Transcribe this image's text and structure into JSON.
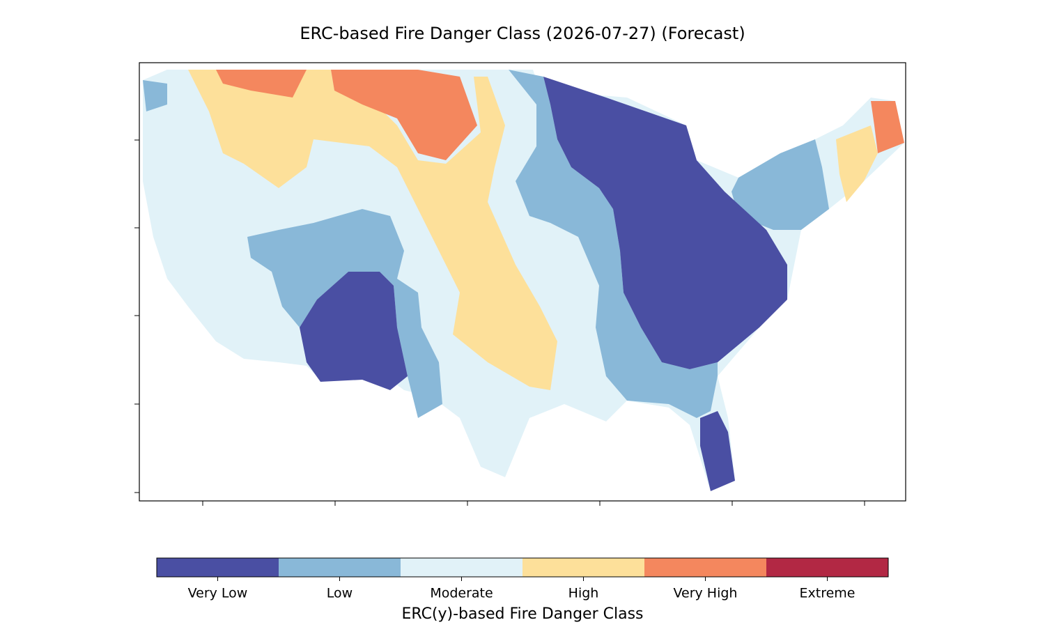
{
  "title": "ERC-based Fire Danger Class (2026-07-27) (Forecast)",
  "colorbar": {
    "label": "ERC(y)-based Fire Danger Class",
    "classes": [
      {
        "name": "Very Low",
        "color": "#4a4fa3"
      },
      {
        "name": "Low",
        "color": "#89b8d8"
      },
      {
        "name": "Moderate",
        "color": "#e1f2f8"
      },
      {
        "name": "High",
        "color": "#fde09a"
      },
      {
        "name": "Very High",
        "color": "#f4875e"
      },
      {
        "name": "Extreme",
        "color": "#b22844"
      }
    ]
  }
}
